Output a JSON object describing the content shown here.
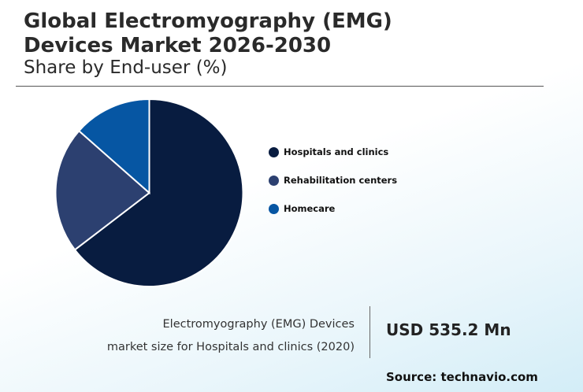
{
  "title_line1": "Global Electromyography (EMG)",
  "title_line2": "Devices Market 2026-2030",
  "subtitle": "Share by End-user (%)",
  "chart_data": {
    "type": "pie",
    "categories": [
      "Hospitals and clinics",
      "Rehabilitation centers",
      "Homecare"
    ],
    "values": [
      64.6,
      21.9,
      13.5
    ],
    "colors": [
      "#081c40",
      "#2c4070",
      "#0656a3"
    ],
    "legend": "right"
  },
  "callout": {
    "line1": "Electromyography (EMG) Devices",
    "line2": "market size for Hospitals and clinics (2020)",
    "value": "USD 535.2 Mn"
  },
  "source": "Source: technavio.com"
}
